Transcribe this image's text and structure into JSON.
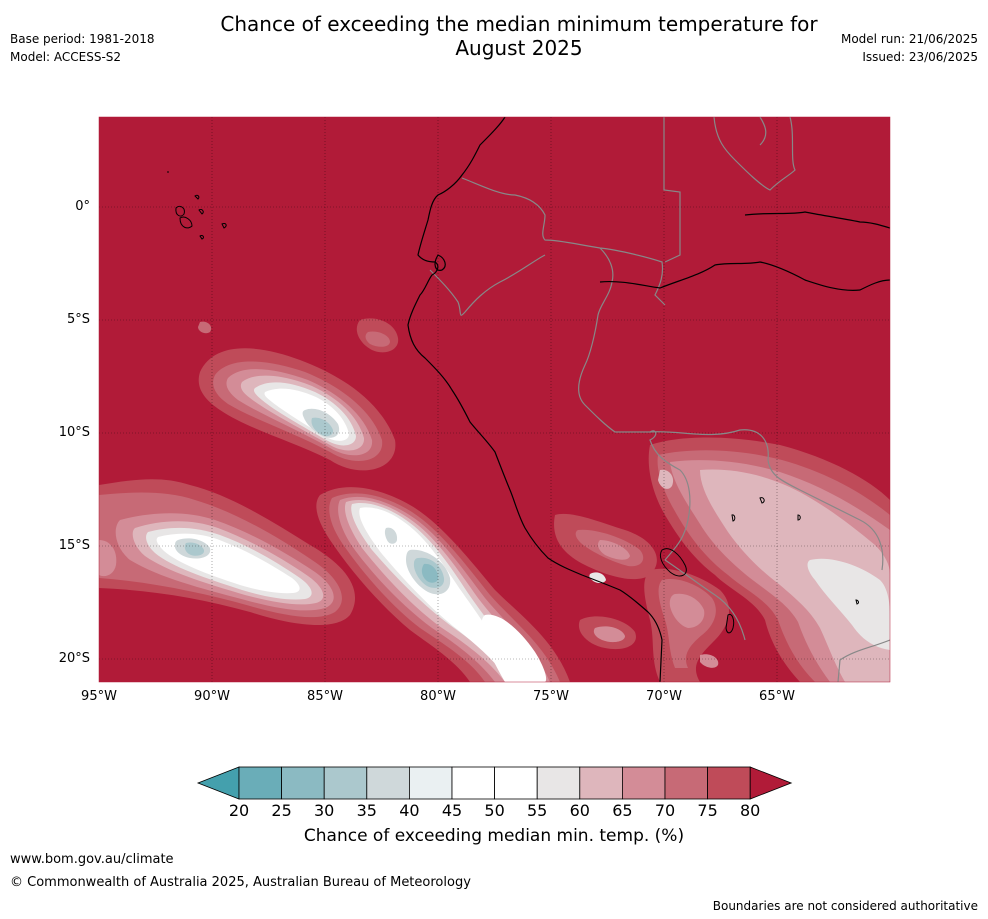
{
  "header": {
    "title_line1": "Chance of exceeding the median minimum temperature for",
    "title_line2": "August 2025",
    "base_period": "Base period: 1981-2018",
    "model": "Model: ACCESS-S2",
    "model_run": "Model run: 21/06/2025",
    "issued": "Issued: 23/06/2025"
  },
  "map": {
    "background_color": "#b11b38",
    "lat_labels": [
      "0°",
      "5°S",
      "10°S",
      "15°S",
      "20°S"
    ],
    "lon_labels": [
      "95°W",
      "90°W",
      "85°W",
      "80°W",
      "75°W",
      "70°W",
      "65°W"
    ]
  },
  "colorbar": {
    "title": "Chance of exceeding median min. temp. (%)",
    "ticks": [
      "20",
      "25",
      "30",
      "35",
      "40",
      "45",
      "50",
      "55",
      "60",
      "65",
      "70",
      "75",
      "80"
    ],
    "colors": [
      "#44a0ad",
      "#6aadb8",
      "#8bbac2",
      "#abc8cd",
      "#cfd8da",
      "#eaf0f2",
      "#ffffff",
      "#ffffff",
      "#e8e6e6",
      "#deb6bc",
      "#d38c97",
      "#c76a76",
      "#bf4b59",
      "#b11b38"
    ]
  },
  "footer": {
    "website": "www.bom.gov.au/climate",
    "copyright": "© Commonwealth of Australia 2025, Australian Bureau of Meteorology",
    "disclaimer": "Boundaries are not considered authoritative"
  }
}
